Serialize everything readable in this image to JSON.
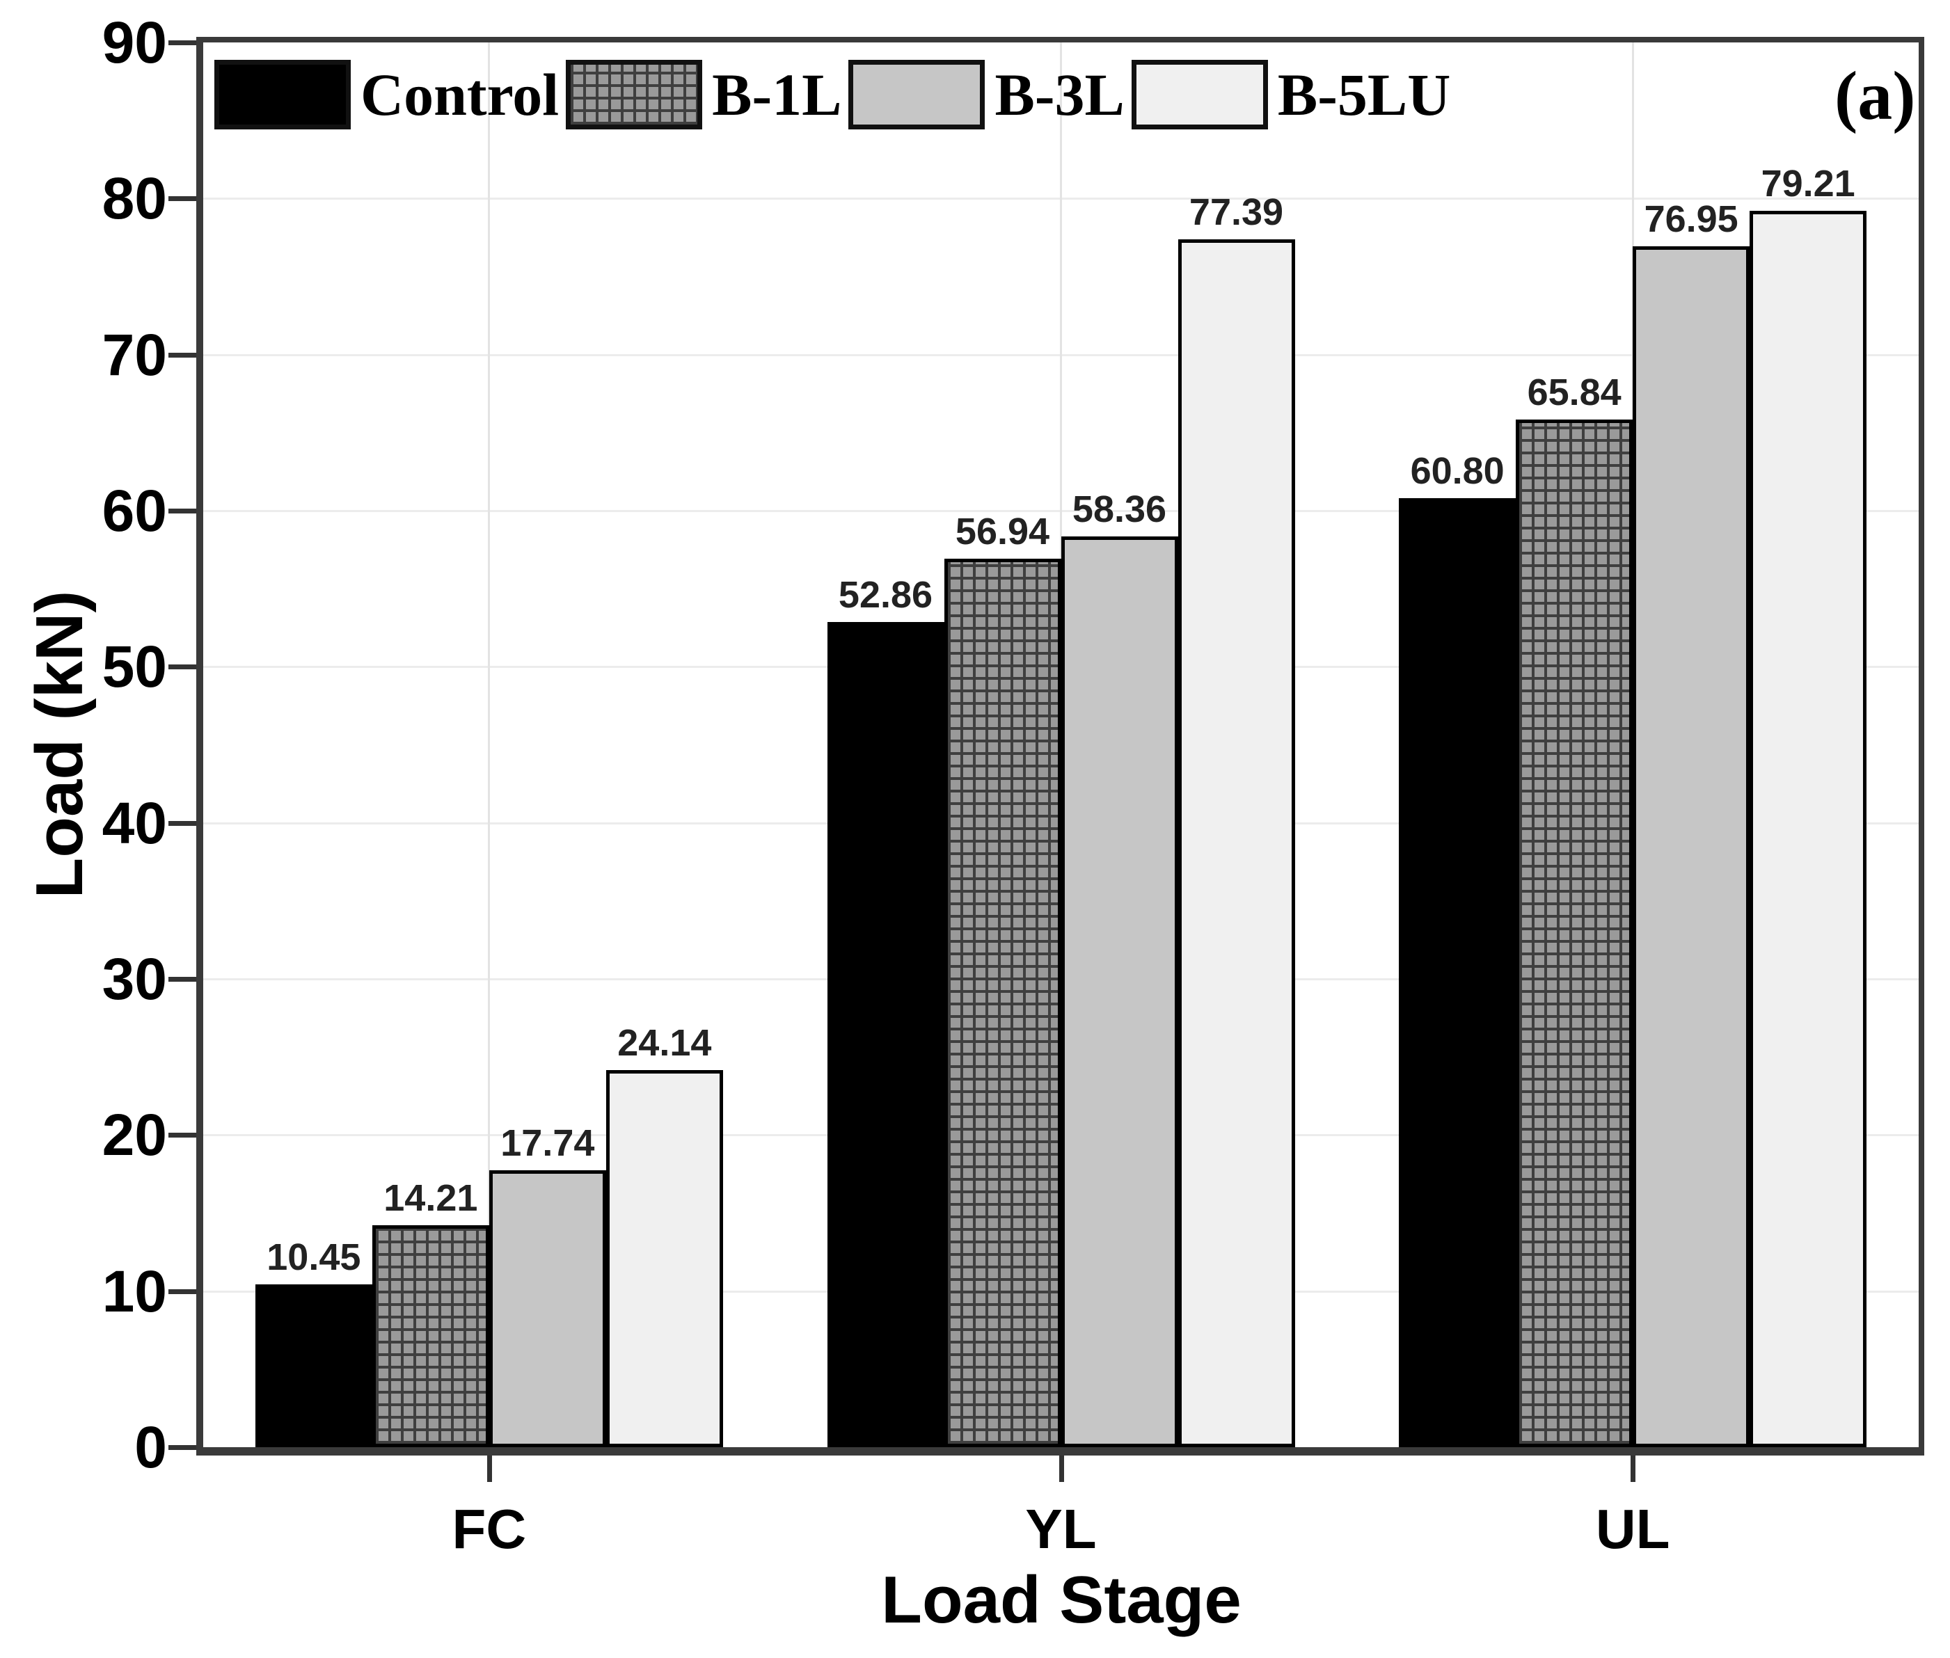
{
  "panel_label": "(a)",
  "chart_data": {
    "type": "bar",
    "title": "",
    "xlabel": "Load Stage",
    "ylabel": "Load (kN)",
    "categories": [
      "FC",
      "YL",
      "UL"
    ],
    "series": [
      {
        "name": "Control",
        "fill": "#000000",
        "hatch": "none",
        "values": [
          10.45,
          52.86,
          60.8
        ],
        "labels": [
          "10.45",
          "52.86",
          "60.80"
        ]
      },
      {
        "name": "B-1L",
        "fill": "#9a9a9a",
        "hatch": "grid",
        "hatch_color": "#3f3f3f",
        "values": [
          14.21,
          56.94,
          65.84
        ],
        "labels": [
          "14.21",
          "56.94",
          "65.84"
        ]
      },
      {
        "name": "B-3L",
        "fill": "#c6c6c6",
        "hatch": "none",
        "values": [
          17.74,
          58.36,
          76.95
        ],
        "labels": [
          "17.74",
          "58.36",
          "76.95"
        ]
      },
      {
        "name": "B-5LU",
        "fill": "#f0f0f0",
        "hatch": "none",
        "values": [
          24.14,
          77.39,
          79.21
        ],
        "labels": [
          "24.14",
          "77.39",
          "79.21"
        ]
      }
    ],
    "ylim": [
      0,
      90
    ],
    "yticks": [
      0,
      10,
      20,
      30,
      40,
      50,
      60,
      70,
      80,
      90
    ],
    "grid": "horizontal-ticks and vertical-category-centers",
    "legend_position": "top-left-row",
    "colors": {
      "axis": "#3a3a3a",
      "hgrid": "#ececec",
      "vgrid": "#e3e3e3",
      "bar_border": "#000000",
      "value_label": "#222222"
    }
  }
}
